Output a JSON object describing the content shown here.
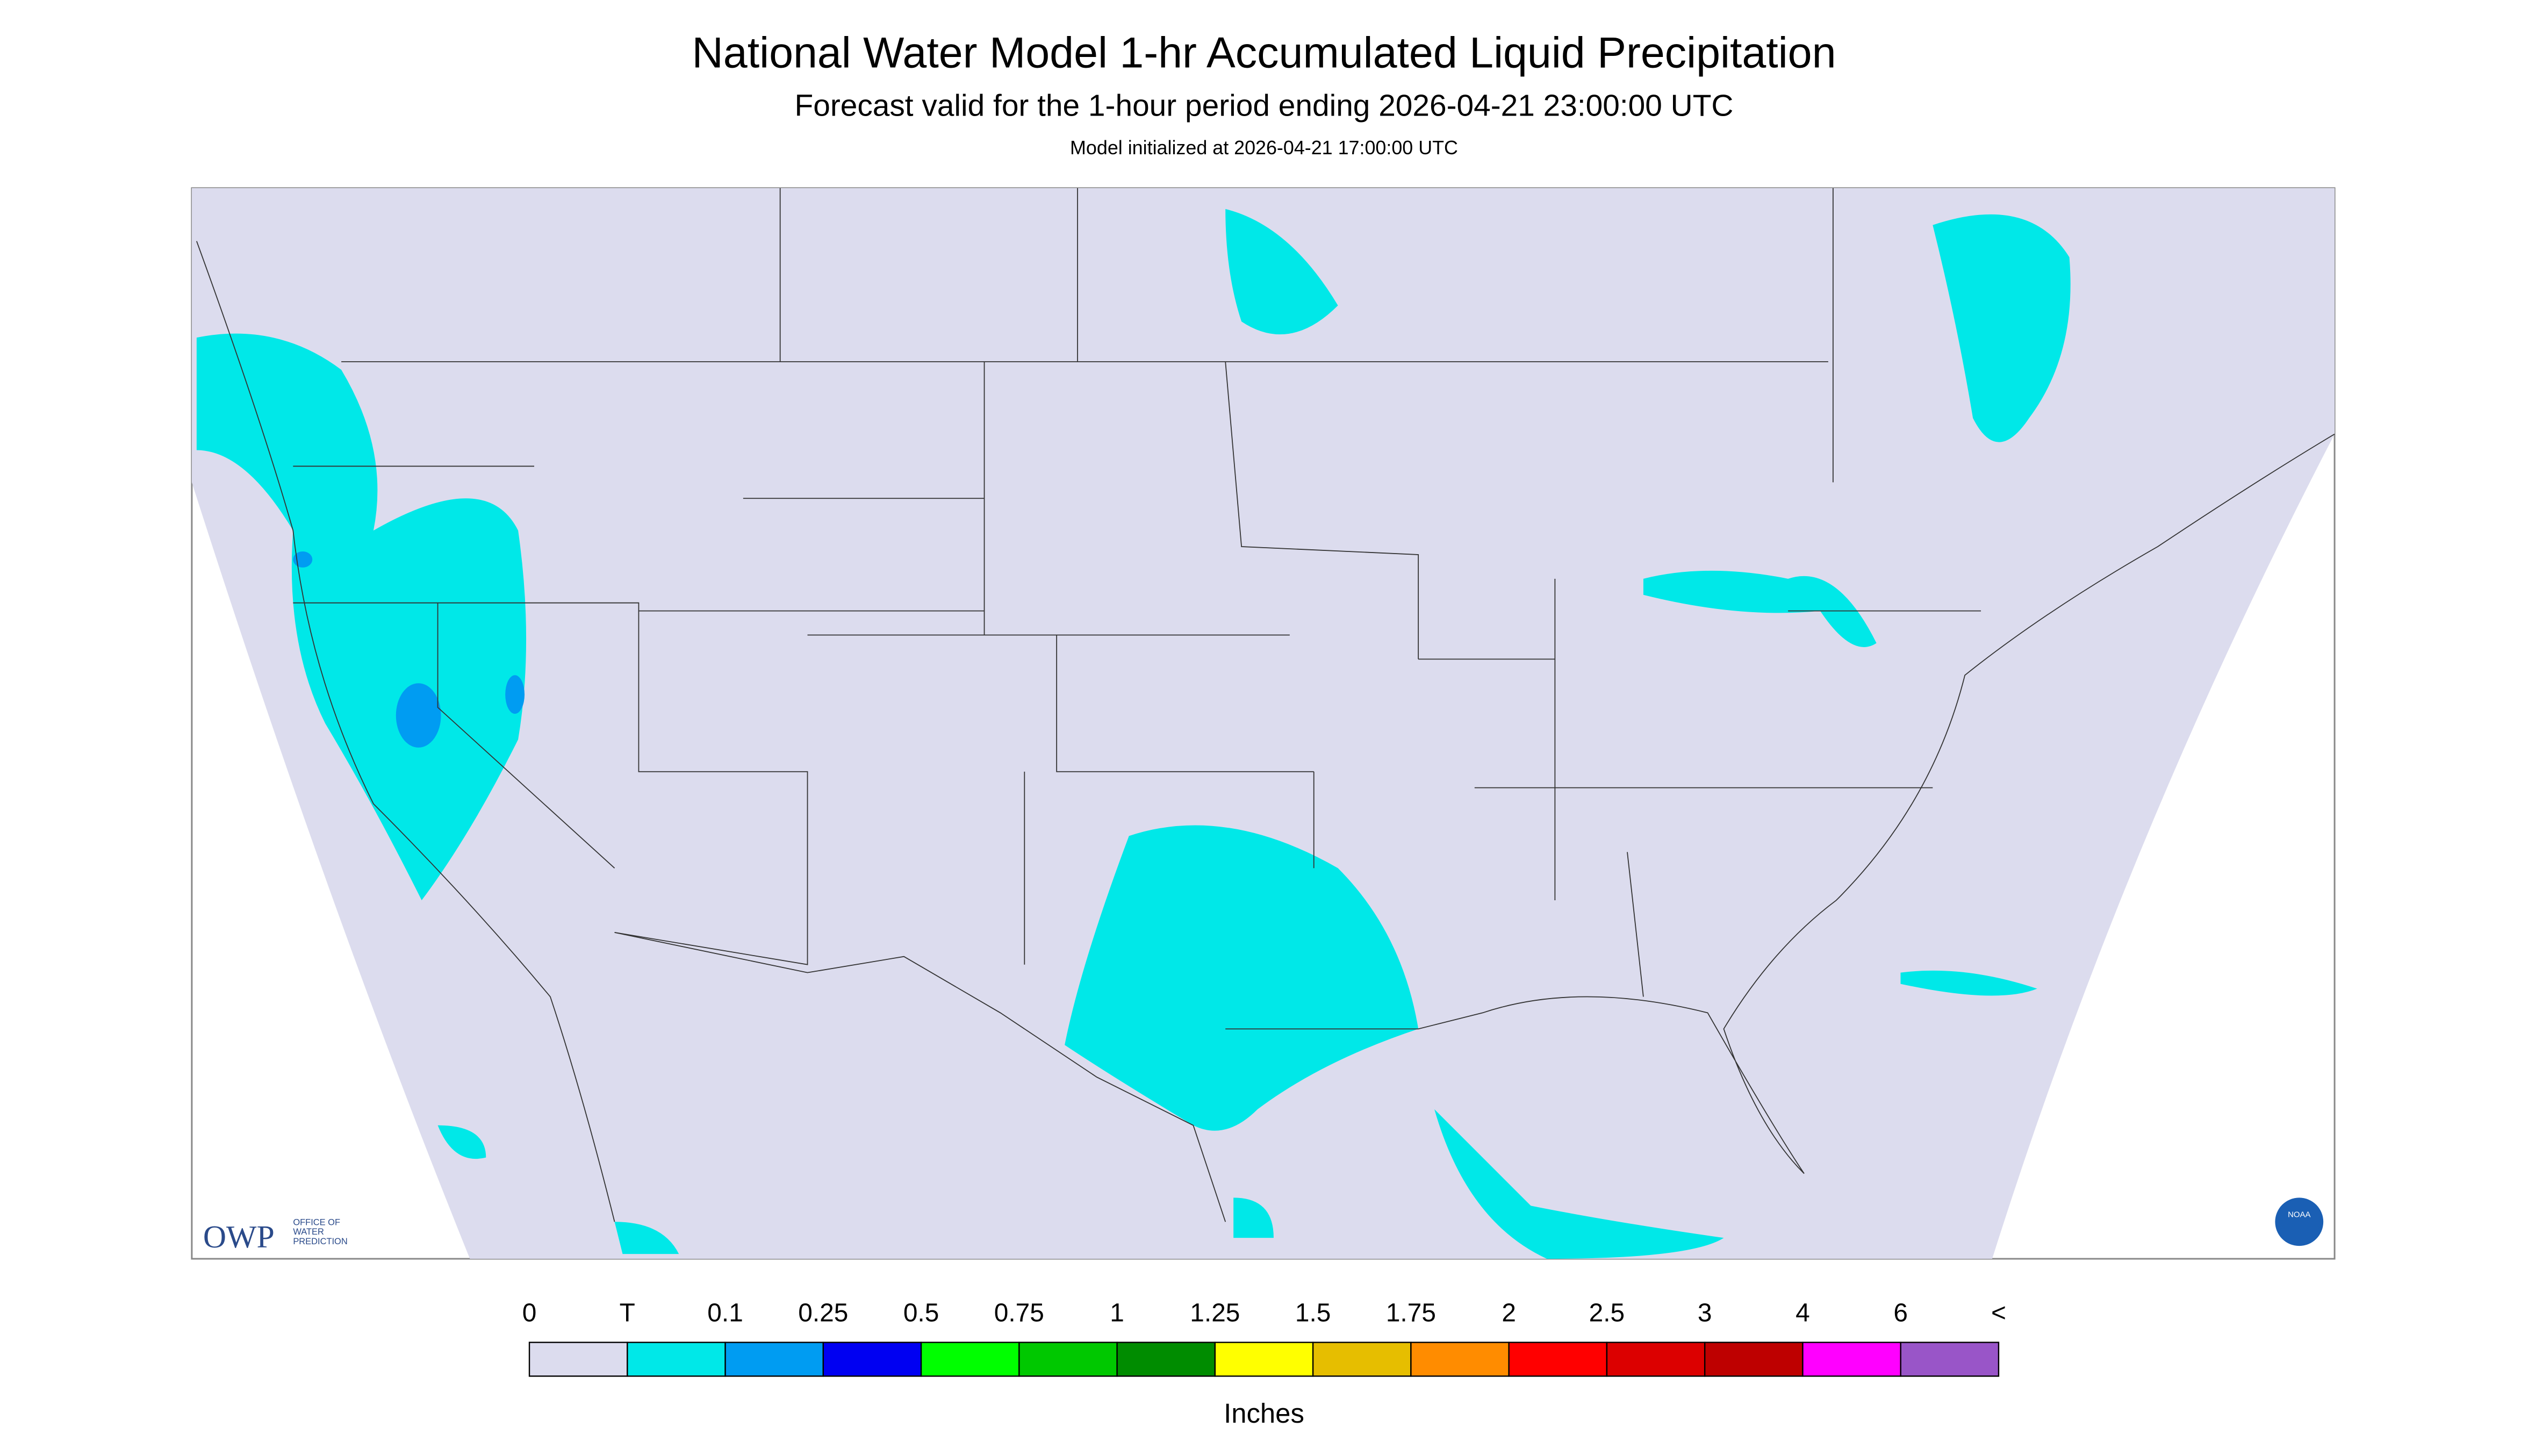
{
  "header": {
    "title": "National Water Model 1-hr Accumulated Liquid Precipitation",
    "subtitle": "Forecast valid for the 1-hour period ending 2026-04-21 23:00:00 UTC",
    "init": "Model initialized at 2026-04-21 17:00:00 UTC"
  },
  "logos": {
    "owp": "OWP",
    "owp_caption": [
      "OFFICE OF",
      "WATER",
      "PREDICTION"
    ],
    "noaa": "NOAA"
  },
  "legend": {
    "labels": [
      "0",
      "T",
      "0.1",
      "0.25",
      "0.5",
      "0.75",
      "1",
      "1.25",
      "1.5",
      "1.75",
      "2",
      "2.5",
      "3",
      "4",
      "6",
      "<"
    ],
    "colors": [
      "#dcdcee",
      "#00e8e8",
      "#009cf2",
      "#0000f2",
      "#00ff00",
      "#00c800",
      "#008c00",
      "#ffff00",
      "#e6be00",
      "#ff8c00",
      "#ff0000",
      "#dc0000",
      "#be0000",
      "#ff00ff",
      "#9955c8"
    ],
    "unit": "Inches"
  }
}
